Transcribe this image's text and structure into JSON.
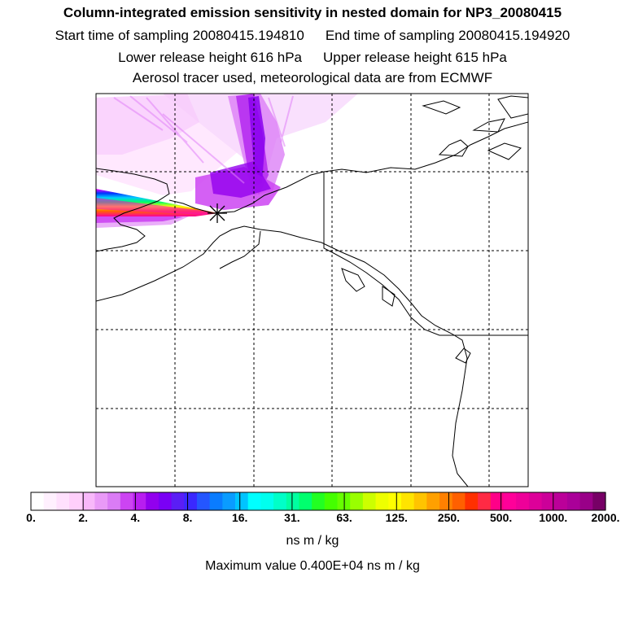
{
  "header": {
    "title": "Column-integrated emission sensitivity in nested domain for NP3_20080415",
    "start_label": "Start time of sampling 20080415.194810",
    "end_label": "End time of sampling 20080415.194920",
    "lower_label": "Lower release height  616 hPa",
    "upper_label": "Upper release height  615 hPa",
    "tracer_label": "Aerosol tracer used, meteorological data are from ECMWF"
  },
  "map": {
    "release_marker": "asterisk-icon",
    "plume_colors": [
      "#ff66ff",
      "#cc00ff",
      "#8800ee"
    ]
  },
  "colorbar": {
    "colors": [
      "#ffffff",
      "#fff0fe",
      "#ffe0fd",
      "#ffcffb",
      "#f8b8fa",
      "#e99af7",
      "#da7cf5",
      "#cc44f2",
      "#b81ef0",
      "#9200ee",
      "#7a00f5",
      "#5a1ef5",
      "#3a28ff",
      "#2456ff",
      "#0a7cff",
      "#0a9cff",
      "#00c4ff",
      "#00ffff",
      "#00ffee",
      "#00ffc8",
      "#00ffa0",
      "#00ff6e",
      "#22ff22",
      "#44ff00",
      "#66ff00",
      "#99ff00",
      "#ccff00",
      "#eeff00",
      "#ffff00",
      "#ffe400",
      "#ffc400",
      "#ffa000",
      "#ff8000",
      "#ff6000",
      "#ff3000",
      "#ff2a44",
      "#ff0088",
      "#ff0099",
      "#ee0099",
      "#dd0099",
      "#cc0099",
      "#bb0099",
      "#aa0099",
      "#990088",
      "#770066"
    ],
    "tick_labels": [
      "0.",
      "2.",
      "4.",
      "8.",
      "16.",
      "31.",
      "63.",
      "125.",
      "250.",
      "500.",
      "1000.",
      "2000."
    ],
    "units": "ns m / kg",
    "max_value_label": "Maximum value  0.400E+04 ns m / kg"
  }
}
